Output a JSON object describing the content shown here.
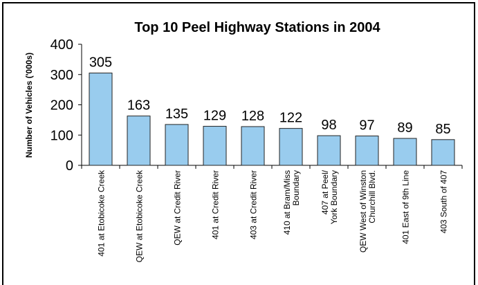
{
  "chart_data": {
    "type": "bar",
    "title": "Top 10 Peel Highway Stations in 2004",
    "y_label": "Number of Vehicles ('000s)",
    "categories": [
      "401 at Etobicoke Creek",
      "QEW at Etobicoke Creek",
      "QEW at Credit River",
      "401 at Credit River",
      "403 at Credit River",
      "410 at Bram/Miss\nBoundary",
      "407 at Peel/\nYork Boundary",
      "QEW West of Winston\nChurchill Blvd.",
      "401 East of 9th Line",
      "403 South of 407"
    ],
    "values": [
      305,
      163,
      135,
      129,
      128,
      122,
      98,
      97,
      89,
      85
    ],
    "color": "#99ccee",
    "ylim": [
      0,
      400
    ],
    "yticks": [
      0,
      100,
      200,
      300,
      400
    ],
    "grid": false
  }
}
